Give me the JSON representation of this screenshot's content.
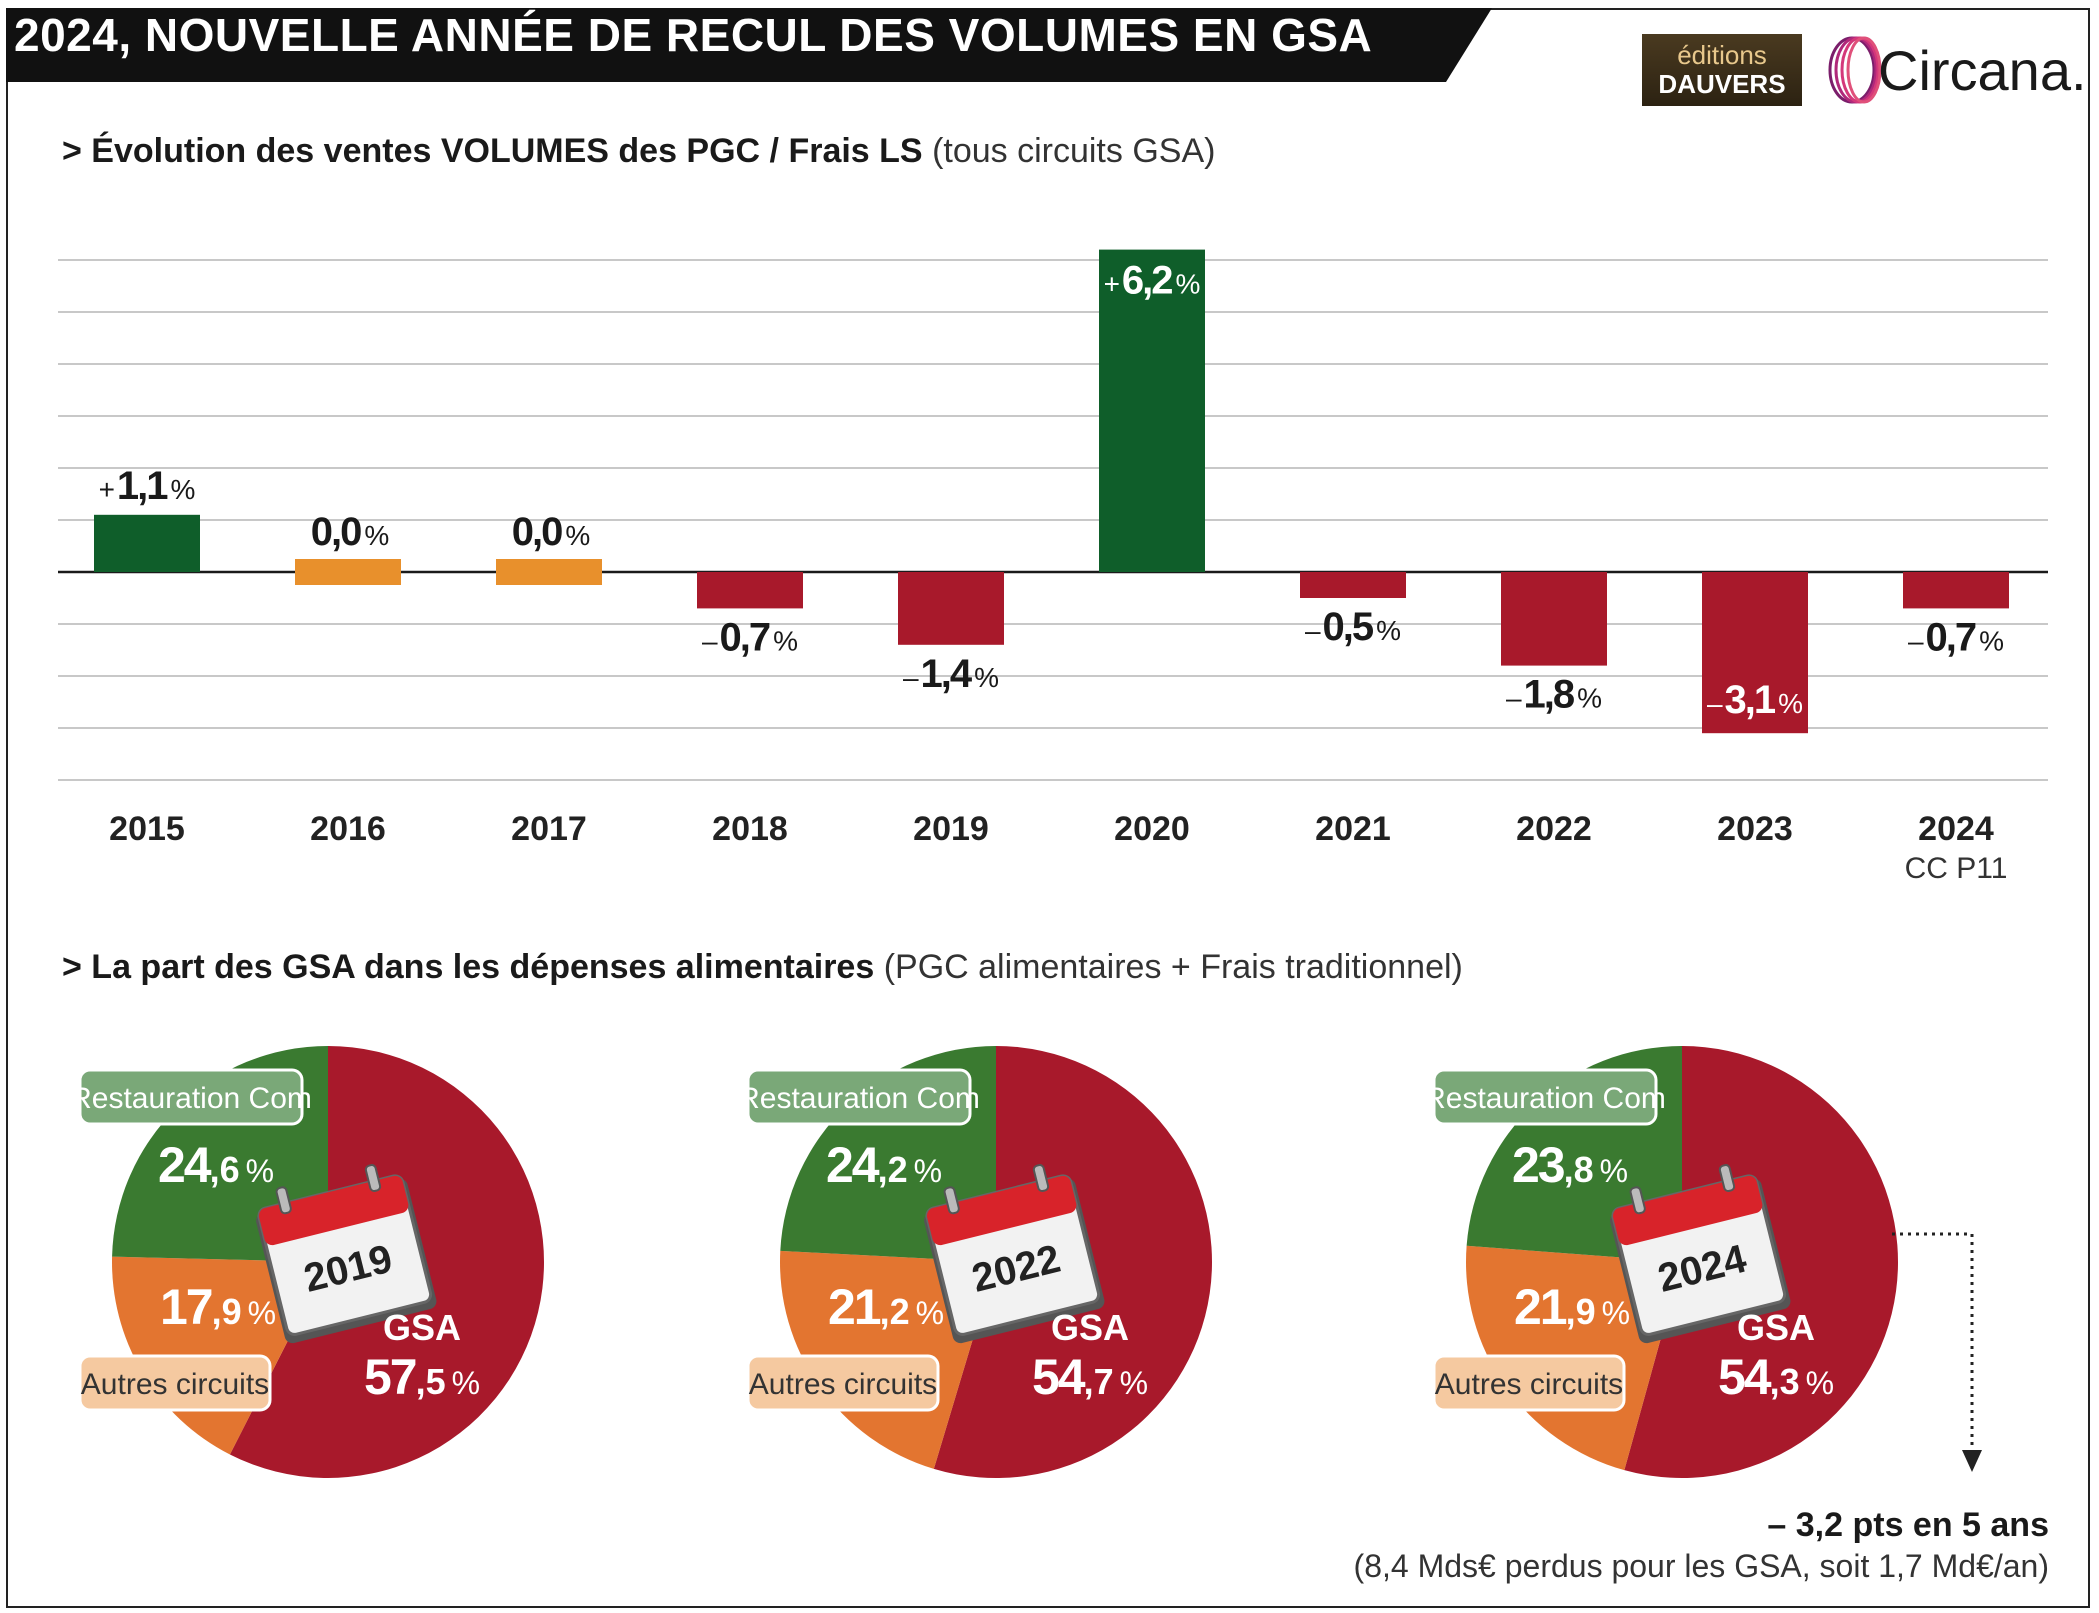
{
  "header": {
    "title": "2024, NOUVELLE ANNÉE DE RECUL DES VOLUMES EN GSA",
    "logo_dauvers_top": "éditions",
    "logo_dauvers_bottom": "DAUVERS",
    "logo_circana": "Circana."
  },
  "section1": {
    "title_bold": "> Évolution des ventes VOLUMES des PGC / Frais LS",
    "title_light": "(tous circuits GSA)"
  },
  "section2": {
    "title_bold": "> La part des GSA dans les dépenses alimentaires",
    "title_light": "(PGC alimentaires + Frais traditionnel)"
  },
  "colors": {
    "positive": "#0f5e2a",
    "zero": "#e8902c",
    "negative": "#a8192b",
    "pie_gsa": "#a8192b",
    "pie_restauration": "#3a7a30",
    "pie_autres": "#e37530",
    "label_restauration_bg": "#7aa878",
    "label_autres_bg": "#f5c9a0"
  },
  "chart_data": [
    {
      "type": "bar",
      "categories": [
        "2015",
        "2016",
        "2017",
        "2018",
        "2019",
        "2020",
        "2021",
        "2022",
        "2023",
        "2024"
      ],
      "category_sublabels": [
        "",
        "",
        "",
        "",
        "",
        "",
        "",
        "",
        "",
        "CC P11"
      ],
      "values": [
        1.1,
        0.0,
        0.0,
        -0.7,
        -1.4,
        6.2,
        -0.5,
        -1.8,
        -3.1,
        -0.7
      ],
      "value_signs": [
        "+",
        "",
        "",
        "–",
        "–",
        "+",
        "–",
        "–",
        "–",
        "–"
      ],
      "value_numbers": [
        "1,1",
        "0,0",
        "0,0",
        "0,7",
        "1,4",
        "6,2",
        "0,5",
        "1,8",
        "3,1",
        "0,7"
      ],
      "value_unit": "%",
      "grid": true
    },
    {
      "type": "pie",
      "year": "2019",
      "segments": [
        {
          "name": "GSA",
          "value": 57.5,
          "int": "57",
          "dec": ",5"
        },
        {
          "name": "Autres circuits",
          "value": 17.9,
          "int": "17",
          "dec": ",9"
        },
        {
          "name": "Restauration Com",
          "value": 24.6,
          "int": "24",
          "dec": ",6"
        }
      ]
    },
    {
      "type": "pie",
      "year": "2022",
      "segments": [
        {
          "name": "GSA",
          "value": 54.7,
          "int": "54",
          "dec": ",7"
        },
        {
          "name": "Autres circuits",
          "value": 21.2,
          "int": "21",
          "dec": ",2"
        },
        {
          "name": "Restauration Com",
          "value": 24.2,
          "int": "24",
          "dec": ",2"
        }
      ]
    },
    {
      "type": "pie",
      "year": "2024",
      "segments": [
        {
          "name": "GSA",
          "value": 54.3,
          "int": "54",
          "dec": ",3"
        },
        {
          "name": "Autres circuits",
          "value": 21.9,
          "int": "21",
          "dec": ",9"
        },
        {
          "name": "Restauration Com",
          "value": 23.8,
          "int": "23",
          "dec": ",8"
        }
      ]
    }
  ],
  "footnote": {
    "main": "– 3,2 pts en 5 ans",
    "sub": "(8,4 Mds€ perdus pour les GSA, soit 1,7 Md€/an)"
  }
}
